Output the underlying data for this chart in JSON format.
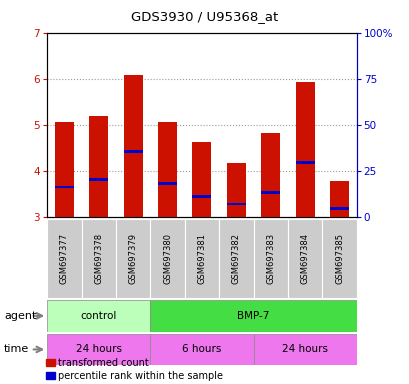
{
  "title": "GDS3930 / U95368_at",
  "samples": [
    "GSM697377",
    "GSM697378",
    "GSM697379",
    "GSM697380",
    "GSM697381",
    "GSM697382",
    "GSM697383",
    "GSM697384",
    "GSM697385"
  ],
  "red_tops": [
    5.05,
    5.2,
    6.07,
    5.05,
    4.63,
    4.18,
    4.82,
    5.92,
    3.77
  ],
  "blue_positions": [
    3.65,
    3.82,
    4.42,
    3.72,
    3.45,
    3.28,
    3.53,
    4.18,
    3.18
  ],
  "y_min": 3.0,
  "y_max": 7.0,
  "y_left_ticks": [
    3,
    4,
    5,
    6,
    7
  ],
  "y_right_ticks": [
    0,
    25,
    50,
    75,
    100
  ],
  "bar_color": "#cc1100",
  "blue_color": "#0000cc",
  "agent_groups": [
    {
      "label": "control",
      "start": 0,
      "end": 3,
      "color": "#bbffbb"
    },
    {
      "label": "BMP-7",
      "start": 3,
      "end": 9,
      "color": "#44dd44"
    }
  ],
  "time_groups": [
    {
      "label": "24 hours",
      "start": 0,
      "end": 3,
      "color": "#ee77ee"
    },
    {
      "label": "6 hours",
      "start": 3,
      "end": 6,
      "color": "#ee77ee"
    },
    {
      "label": "24 hours",
      "start": 6,
      "end": 9,
      "color": "#ee77ee"
    }
  ],
  "legend_red": "transformed count",
  "legend_blue": "percentile rank within the sample",
  "label_agent": "agent",
  "label_time": "time",
  "bar_width": 0.55,
  "tick_label_color_left": "#cc1100",
  "tick_label_color_right": "#0000cc",
  "grid_color": "#888888",
  "sample_row_color": "#cccccc",
  "figsize": [
    4.1,
    3.84
  ],
  "dpi": 100
}
